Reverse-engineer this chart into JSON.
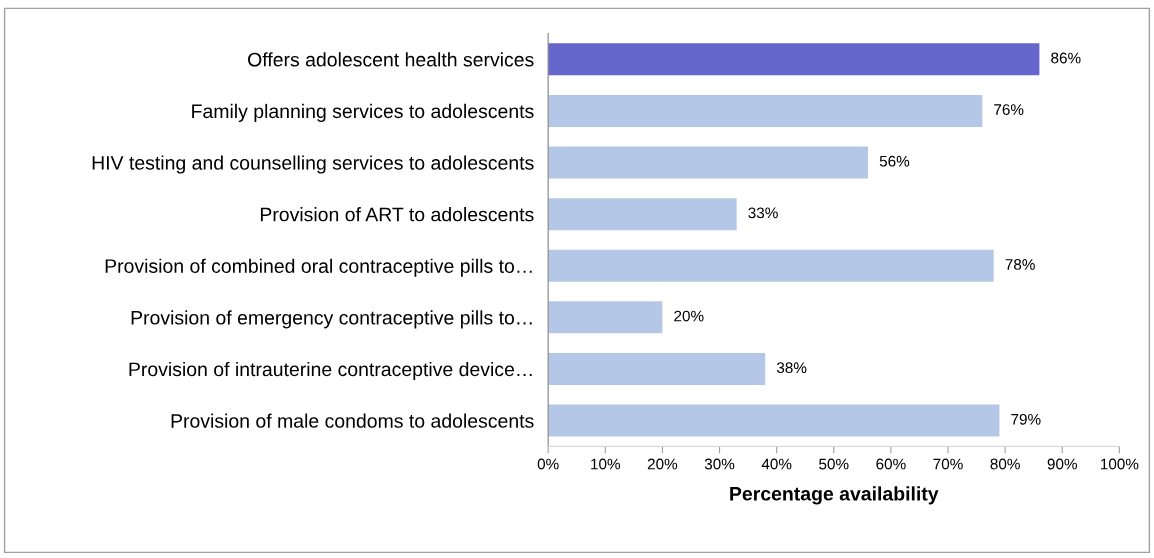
{
  "chart_data": {
    "type": "bar",
    "orientation": "horizontal",
    "xlabel": "Percentage availability",
    "categories": [
      "Offers adolescent health services",
      "Family planning services to adolescents",
      "HIV testing and counselling services to adolescents",
      "Provision of ART to adolescents",
      "Provision of combined oral contraceptive pills to…",
      "Provision of emergency contraceptive pills to…",
      "Provision of intrauterine contraceptive device…",
      "Provision of male condoms to adolescents"
    ],
    "values": [
      86,
      76,
      56,
      33,
      78,
      20,
      38,
      79
    ],
    "colors": [
      "#6666cc",
      "#b4c7e7",
      "#b4c7e7",
      "#b4c7e7",
      "#b4c7e7",
      "#b4c7e7",
      "#b4c7e7",
      "#b4c7e7"
    ],
    "value_labels": [
      "86%",
      "76%",
      "56%",
      "33%",
      "78%",
      "20%",
      "38%",
      "79%"
    ],
    "xlim": [
      0,
      100
    ],
    "xticks": [
      {
        "value": 0,
        "label": "0%"
      },
      {
        "value": 10,
        "label": "10%"
      },
      {
        "value": 20,
        "label": "20%"
      },
      {
        "value": 30,
        "label": "30%"
      },
      {
        "value": 40,
        "label": "40%"
      },
      {
        "value": 50,
        "label": "50%"
      },
      {
        "value": 60,
        "label": "60%"
      },
      {
        "value": 70,
        "label": "70%"
      },
      {
        "value": 80,
        "label": "80%"
      },
      {
        "value": 90,
        "label": "90%"
      },
      {
        "value": 100,
        "label": "100%"
      }
    ],
    "grid": false,
    "legend": false
  }
}
